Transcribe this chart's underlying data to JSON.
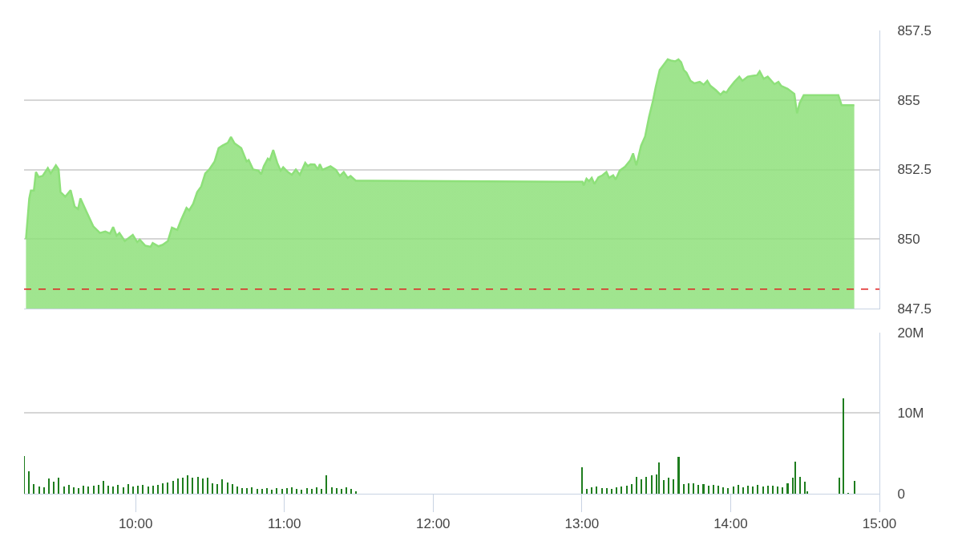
{
  "chart_data": [
    {
      "type": "area",
      "xlim": [
        9.25,
        15.0
      ],
      "ylim": [
        847.5,
        857.5
      ],
      "yticks": [
        {
          "value": 847.5,
          "label": "847.5"
        },
        850,
        {
          "value": 852.5,
          "label": "852.5"
        },
        855,
        {
          "value": 857.5,
          "label": "857.5"
        }
      ],
      "grid": "y",
      "tick_labels": "y",
      "ref_lines": [
        {
          "axis": "y",
          "value": 848.2,
          "color": "#e02020",
          "line_style": "dashed"
        }
      ],
      "series": [
        {
          "color": "#8ee07a",
          "x": [
            9.263,
            9.285,
            9.296,
            9.316,
            9.33,
            9.348,
            9.375,
            9.41,
            9.429,
            9.464,
            9.482,
            9.495,
            9.527,
            9.563,
            9.59,
            9.613,
            9.629,
            9.67,
            9.715,
            9.76,
            9.796,
            9.828,
            9.849,
            9.872,
            9.891,
            9.927,
            9.981,
            10.011,
            10.028,
            10.065,
            10.101,
            10.115,
            10.154,
            10.181,
            10.217,
            10.244,
            10.28,
            10.306,
            10.342,
            10.36,
            10.387,
            10.414,
            10.441,
            10.468,
            10.495,
            10.531,
            10.558,
            10.584,
            10.62,
            10.641,
            10.665,
            10.71,
            10.746,
            10.76,
            10.79,
            10.826,
            10.844,
            10.862,
            10.889,
            10.902,
            10.925,
            10.952,
            10.975,
            10.992,
            11.023,
            11.05,
            11.077,
            11.104,
            11.14,
            11.158,
            11.176,
            11.203,
            11.226,
            11.238,
            11.256,
            11.31,
            11.346,
            11.373,
            11.399,
            11.426,
            11.445,
            11.48,
            11.57,
            12.86,
            13.004,
            13.012,
            13.031,
            13.048,
            13.066,
            13.084,
            13.111,
            13.138,
            13.165,
            13.183,
            13.21,
            13.227,
            13.254,
            13.29,
            13.326,
            13.344,
            13.366,
            13.398,
            13.425,
            13.452,
            13.478,
            13.496,
            13.523,
            13.55,
            13.577,
            13.604,
            13.627,
            13.649,
            13.667,
            13.685,
            13.703,
            13.73,
            13.756,
            13.792,
            13.819,
            13.843,
            13.864,
            13.899,
            13.932,
            13.953,
            13.972,
            13.989,
            14.025,
            14.058,
            14.079,
            14.115,
            14.151,
            14.177,
            14.195,
            14.222,
            14.249,
            14.294,
            14.321,
            14.339,
            14.383,
            14.428,
            14.446,
            14.464,
            14.491,
            14.724,
            14.746,
            14.831
          ],
          "values": [
            850.0,
            851.46,
            851.74,
            851.74,
            852.41,
            852.23,
            852.27,
            852.55,
            852.36,
            852.65,
            852.51,
            851.69,
            851.52,
            851.76,
            851.17,
            851.08,
            851.46,
            850.98,
            850.46,
            850.22,
            850.27,
            850.2,
            850.43,
            850.12,
            850.22,
            849.93,
            850.15,
            849.89,
            849.98,
            849.76,
            849.72,
            849.86,
            849.74,
            849.79,
            849.93,
            850.41,
            850.33,
            850.69,
            851.12,
            851.03,
            851.27,
            851.69,
            851.89,
            852.36,
            852.5,
            852.79,
            853.27,
            853.36,
            853.46,
            853.67,
            853.44,
            853.27,
            852.79,
            852.84,
            852.5,
            852.46,
            852.33,
            852.62,
            852.89,
            852.84,
            853.2,
            852.74,
            852.46,
            852.58,
            852.41,
            852.31,
            852.5,
            852.31,
            852.74,
            852.62,
            852.69,
            852.68,
            852.5,
            852.69,
            852.49,
            852.62,
            852.49,
            852.27,
            852.41,
            852.2,
            852.27,
            852.1,
            852.1,
            852.06,
            852.06,
            851.93,
            852.17,
            852.08,
            852.2,
            851.98,
            852.22,
            852.29,
            852.41,
            852.2,
            852.29,
            852.14,
            852.46,
            852.6,
            852.84,
            853.08,
            852.65,
            853.36,
            853.69,
            854.41,
            854.98,
            855.46,
            856.08,
            856.27,
            856.46,
            856.41,
            856.39,
            856.46,
            856.36,
            856.08,
            855.98,
            855.69,
            855.6,
            855.65,
            855.55,
            855.69,
            855.51,
            855.36,
            855.19,
            855.31,
            855.27,
            855.41,
            855.65,
            855.84,
            855.69,
            855.84,
            855.87,
            855.89,
            856.03,
            855.76,
            855.84,
            855.57,
            855.65,
            855.51,
            855.4,
            855.22,
            854.52,
            854.89,
            855.17,
            855.17,
            854.81,
            854.81
          ]
        }
      ]
    },
    {
      "type": "bar",
      "color": "#1e7d1e",
      "xlim": [
        9.25,
        15.0
      ],
      "xticks": [
        {
          "value": 10,
          "label": "10:00"
        },
        {
          "value": 11,
          "label": "11:00"
        },
        {
          "value": 12,
          "label": "12:00"
        },
        {
          "value": 13,
          "label": "13:00"
        },
        {
          "value": 14,
          "label": "14:00"
        },
        {
          "value": 15,
          "label": "15:00"
        }
      ],
      "ylim": [
        0,
        20
      ],
      "yticks": [
        0,
        {
          "value": 10,
          "label": "10M"
        },
        {
          "value": 20,
          "label": "20M"
        }
      ],
      "grid": "y",
      "x": [
        9.25,
        9.283,
        9.317,
        9.35,
        9.383,
        9.417,
        9.45,
        9.483,
        9.517,
        9.55,
        9.583,
        9.617,
        9.65,
        9.683,
        9.717,
        9.75,
        9.783,
        9.817,
        9.85,
        9.883,
        9.917,
        9.95,
        9.983,
        10.017,
        10.05,
        10.083,
        10.117,
        10.15,
        10.183,
        10.217,
        10.25,
        10.283,
        10.317,
        10.35,
        10.383,
        10.417,
        10.45,
        10.483,
        10.517,
        10.55,
        10.583,
        10.617,
        10.65,
        10.683,
        10.717,
        10.75,
        10.783,
        10.817,
        10.85,
        10.883,
        10.917,
        10.95,
        10.983,
        11.017,
        11.05,
        11.083,
        11.117,
        11.15,
        11.183,
        11.217,
        11.25,
        11.283,
        11.317,
        11.35,
        11.383,
        11.417,
        11.45,
        11.483,
        13.0,
        13.033,
        13.067,
        13.1,
        13.133,
        13.167,
        13.2,
        13.233,
        13.267,
        13.3,
        13.333,
        13.367,
        13.4,
        13.433,
        13.467,
        13.5,
        13.517,
        13.55,
        13.583,
        13.617,
        13.65,
        13.683,
        13.717,
        13.75,
        13.783,
        13.817,
        13.85,
        13.883,
        13.917,
        13.95,
        13.983,
        14.017,
        14.05,
        14.083,
        14.117,
        14.15,
        14.183,
        14.217,
        14.25,
        14.283,
        14.317,
        14.35,
        14.383,
        14.417,
        14.433,
        14.467,
        14.5,
        14.517,
        14.733,
        14.76,
        14.792,
        14.833
      ],
      "values": [
        4.7,
        2.8,
        1.2,
        0.9,
        0.8,
        1.9,
        1.5,
        2.0,
        0.9,
        1.1,
        0.8,
        0.7,
        1.0,
        0.9,
        1.0,
        1.1,
        1.6,
        1.0,
        0.9,
        1.1,
        0.8,
        1.2,
        0.9,
        1.0,
        1.1,
        0.9,
        1.0,
        1.1,
        1.3,
        1.4,
        1.6,
        1.9,
        2.0,
        2.3,
        2.0,
        2.1,
        1.9,
        2.0,
        1.3,
        1.2,
        1.8,
        1.4,
        1.2,
        0.9,
        0.7,
        0.7,
        0.8,
        0.6,
        0.6,
        0.7,
        0.5,
        0.7,
        0.6,
        0.7,
        0.8,
        0.6,
        0.5,
        0.7,
        0.6,
        0.8,
        0.6,
        2.3,
        0.8,
        0.7,
        0.6,
        0.8,
        0.6,
        0.3,
        3.3,
        0.6,
        0.8,
        0.9,
        0.7,
        0.7,
        0.6,
        0.8,
        0.9,
        1.0,
        1.2,
        2.1,
        1.8,
        2.1,
        2.3,
        2.4,
        3.9,
        1.7,
        2.0,
        1.8,
        4.6,
        1.2,
        1.3,
        1.3,
        1.1,
        1.2,
        1.0,
        1.1,
        1.0,
        0.8,
        0.7,
        0.9,
        1.1,
        0.8,
        1.0,
        0.9,
        1.1,
        0.9,
        1.0,
        1.0,
        0.9,
        0.8,
        1.3,
        2.0,
        4.0,
        2.1,
        1.5,
        0.3,
        2.0,
        11.9,
        0.1,
        1.6
      ]
    }
  ]
}
